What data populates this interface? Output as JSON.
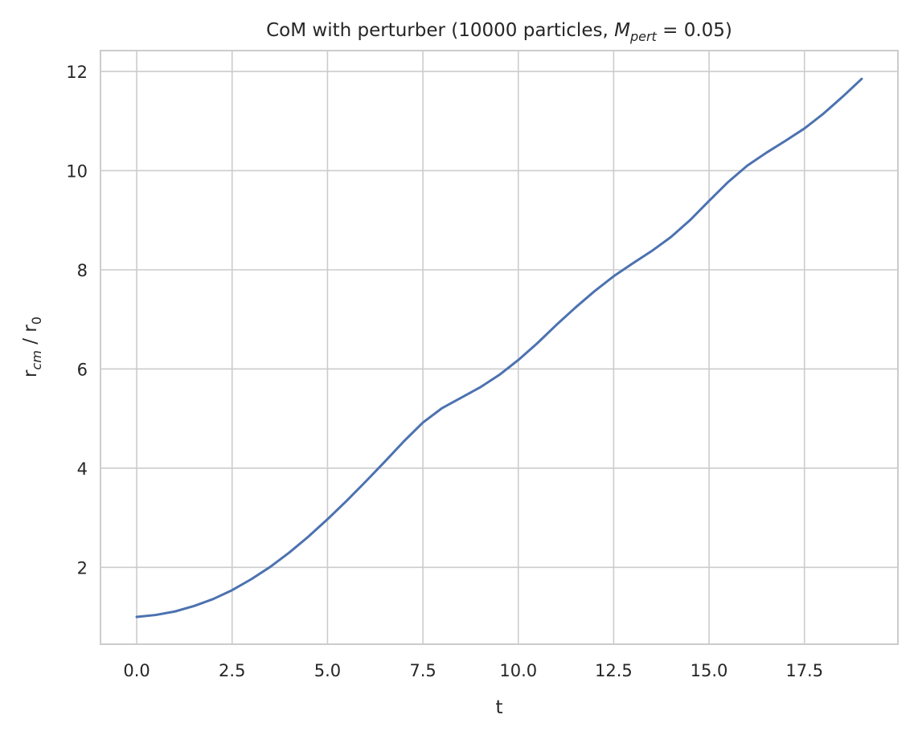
{
  "chart_data": {
    "type": "line",
    "title": {
      "prefix": "CoM with perturber (10000 particles, ",
      "symbol": "M",
      "symbol_subscript": "pert",
      "suffix": "  = 0.05)"
    },
    "xlabel": "t",
    "ylabel": {
      "base": "r",
      "subscript": "cm",
      "separator": " / ",
      "base2": "r",
      "subscript2": "0"
    },
    "xlim": [
      -0.95,
      19.95
    ],
    "ylim": [
      0.45,
      12.42
    ],
    "xticks": [
      0.0,
      2.5,
      5.0,
      7.5,
      10.0,
      12.5,
      15.0,
      17.5
    ],
    "xtick_labels": [
      "0.0",
      "2.5",
      "5.0",
      "7.5",
      "10.0",
      "12.5",
      "15.0",
      "17.5"
    ],
    "yticks": [
      2,
      4,
      6,
      8,
      10,
      12
    ],
    "ytick_labels": [
      "2",
      "4",
      "6",
      "8",
      "10",
      "12"
    ],
    "grid": true,
    "color": "#4c72b0",
    "series": [
      {
        "x": [
          0,
          0.5,
          1,
          1.5,
          2,
          2.5,
          3,
          3.5,
          4,
          4.5,
          5,
          5.5,
          6,
          6.5,
          7,
          7.5,
          8,
          8.5,
          9,
          9.5,
          10,
          10.5,
          11,
          11.5,
          12,
          12.5,
          13,
          13.5,
          14,
          14.5,
          15,
          15.5,
          16,
          16.5,
          17,
          17.5,
          18,
          18.5,
          19
        ],
        "y": [
          1.0,
          1.04,
          1.11,
          1.22,
          1.36,
          1.54,
          1.76,
          2.01,
          2.3,
          2.62,
          2.97,
          3.34,
          3.73,
          4.13,
          4.54,
          4.92,
          5.21,
          5.42,
          5.63,
          5.88,
          6.18,
          6.52,
          6.89,
          7.24,
          7.57,
          7.87,
          8.13,
          8.38,
          8.66,
          9.0,
          9.39,
          9.77,
          10.1,
          10.36,
          10.6,
          10.85,
          11.15,
          11.49,
          11.85
        ]
      }
    ]
  }
}
